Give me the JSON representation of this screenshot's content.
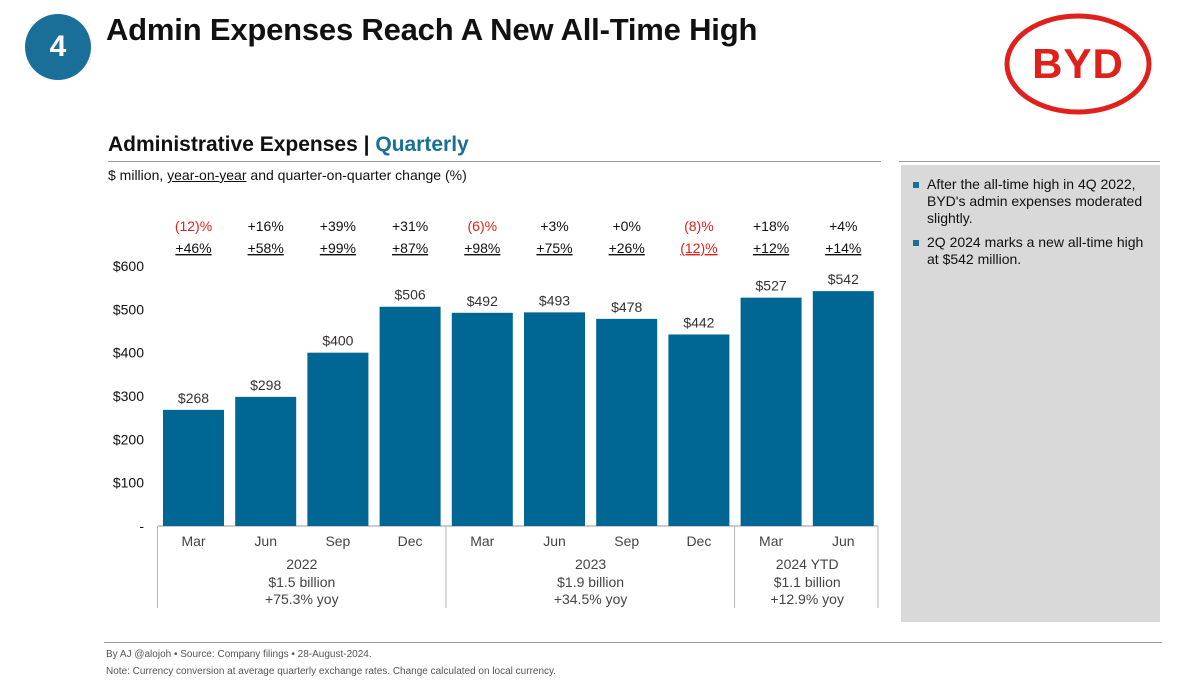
{
  "header": {
    "badge_number": "4",
    "title": "Admin Expenses Reach A New All-Time High"
  },
  "logo": {
    "text": "BYD",
    "color": "#e0201b"
  },
  "chart_header": {
    "title": "Administrative Expenses",
    "separator": "|",
    "accent_title": "Quarterly",
    "subtitle_prefix": "$ million, ",
    "subtitle_underlined": "year-on-year",
    "subtitle_suffix": " and quarter-on-quarter change (%)"
  },
  "sidebar": {
    "bullets": [
      "After the all-time high in 4Q 2022, BYD's admin expenses moderated slightly.",
      "2Q 2024 marks a new all-time high at $542 million."
    ]
  },
  "colors": {
    "accent": "#1a6f99",
    "bar": "#006794",
    "negative": "#e0201b",
    "sidebar_bg": "#d9d9d9"
  },
  "chart_data": {
    "type": "bar",
    "categories": [
      "Mar",
      "Jun",
      "Sep",
      "Dec",
      "Mar",
      "Jun",
      "Sep",
      "Dec",
      "Mar",
      "Jun"
    ],
    "values": [
      268,
      298,
      400,
      506,
      492,
      493,
      478,
      442,
      527,
      542
    ],
    "value_labels": [
      "$268",
      "$298",
      "$400",
      "$506",
      "$492",
      "$493",
      "$478",
      "$442",
      "$527",
      "$542"
    ],
    "qoq_labels": [
      "(12)%",
      "+16%",
      "+39%",
      "+31%",
      "(6)%",
      "+3%",
      "+0%",
      "(8)%",
      "+18%",
      "+4%"
    ],
    "yoy_labels": [
      "+46%",
      "+58%",
      "+99%",
      "+87%",
      "+98%",
      "+75%",
      "+26%",
      "(12)%",
      "+12%",
      "+14%"
    ],
    "ylim": [
      0,
      600
    ],
    "yticks": [
      0,
      100,
      200,
      300,
      400,
      500,
      600
    ],
    "ytick_labels": [
      "-",
      "$100",
      "$200",
      "$300",
      "$400",
      "$500",
      "$600"
    ],
    "groups": [
      {
        "label": "2022",
        "total": "$1.5 billion",
        "change": "+75.3% yoy",
        "start": 0,
        "count": 4
      },
      {
        "label": "2023",
        "total": "$1.9 billion",
        "change": "+34.5% yoy",
        "start": 4,
        "count": 4
      },
      {
        "label": "2024 YTD",
        "total": "$1.1 billion",
        "change": "+12.9% yoy",
        "start": 8,
        "count": 2
      }
    ],
    "grid": false
  },
  "footer": {
    "source": "By AJ @alojoh • Source: Company filings • 28-August-2024.",
    "note": "Note: Currency conversion at average quarterly exchange rates. Change calculated on local currency."
  }
}
